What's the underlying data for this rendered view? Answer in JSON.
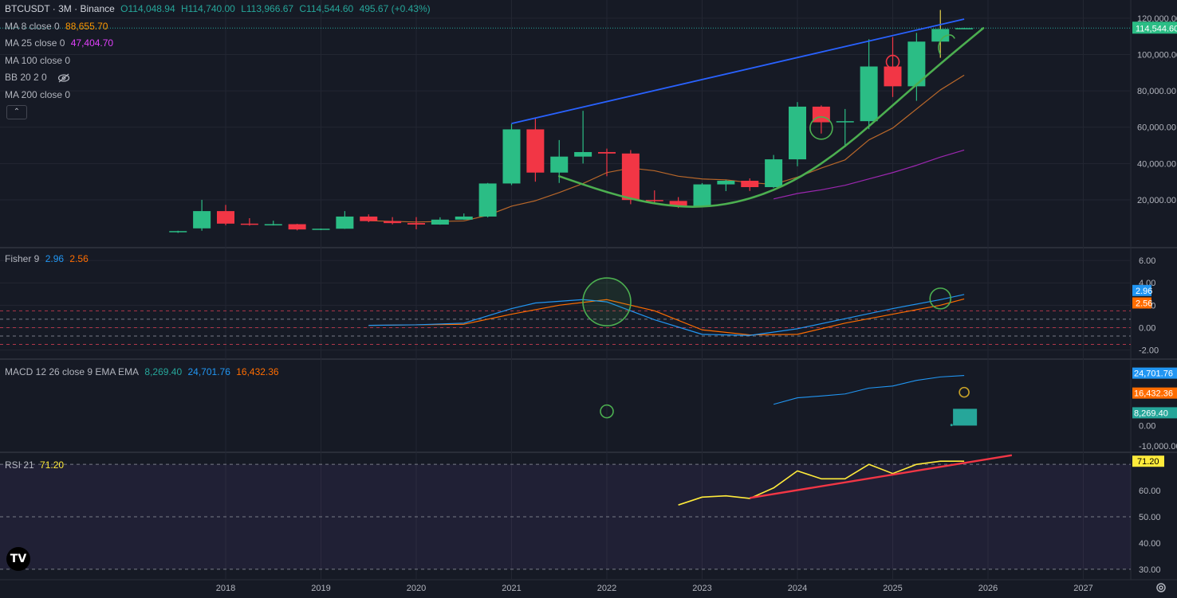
{
  "header": {
    "symbol": "BTCUSDT · 3M · Binance",
    "open": "O114,048.94",
    "high": "H114,740.00",
    "low": "L113,966.67",
    "close": "C114,544.60",
    "change": "495.67 (+0.43%)"
  },
  "indicators": {
    "ma8": {
      "label": "MA 8 close 0",
      "value": "88,655.70"
    },
    "ma25": {
      "label": "MA 25 close 0",
      "value": "47,404.70"
    },
    "ma100": {
      "label": "MA 100 close 0"
    },
    "bb": {
      "label": "BB 20 2 0"
    },
    "ma200": {
      "label": "MA 200 close 0"
    },
    "fisher": {
      "label": "Fisher 9",
      "v1": "2.96",
      "v2": "2.56"
    },
    "macd": {
      "label": "MACD 12 26 close 9 EMA EMA",
      "hist": "8,269.40",
      "macd": "24,701.76",
      "signal": "16,432.36"
    },
    "rsi": {
      "label": "RSI 21",
      "value": "71.20"
    }
  },
  "colors": {
    "up": "#26a69a",
    "up_bright": "#2bbd85",
    "down": "#f23645",
    "ma8": "#ff9800",
    "ma25": "#e040fb",
    "trend_blue": "#2962ff",
    "cup_green": "#4caf50",
    "fisher1": "#2196f3",
    "fisher2": "#ff6d00",
    "rsi_line": "#ffeb3b",
    "rsi_trend": "#f23645",
    "bg": "#161a25"
  },
  "icons": [
    "tradingview-logo-icon",
    "eye-off-icon",
    "chevron-up-icon",
    "settings-gear-icon"
  ],
  "chart_data": [
    {
      "type": "candlestick",
      "title": "BTCUSDT · 3M · Binance",
      "x_ticks": [
        "2018",
        "2019",
        "2020",
        "2021",
        "2022",
        "2023",
        "2024",
        "2025",
        "2026",
        "2027"
      ],
      "y_ticks": [
        "120,000.00",
        "100,000.00",
        "80,000.00",
        "60,000.00",
        "40,000.00",
        "20,000.00"
      ],
      "last_price_label": "114,544.60",
      "ylim": [
        -5000,
        130000
      ],
      "candles": [
        {
          "t": 2017.5,
          "o": 2500,
          "h": 3000,
          "l": 1800,
          "c": 2800
        },
        {
          "t": 2017.75,
          "o": 4300,
          "h": 20000,
          "l": 3000,
          "c": 13800
        },
        {
          "t": 2018.0,
          "o": 13800,
          "h": 17200,
          "l": 6000,
          "c": 6900
        },
        {
          "t": 2018.25,
          "o": 6900,
          "h": 9900,
          "l": 5800,
          "c": 6400
        },
        {
          "t": 2018.5,
          "o": 6400,
          "h": 8500,
          "l": 5900,
          "c": 6600
        },
        {
          "t": 2018.75,
          "o": 6600,
          "h": 6800,
          "l": 3200,
          "c": 3700
        },
        {
          "t": 2019.0,
          "o": 3700,
          "h": 4200,
          "l": 3350,
          "c": 4100
        },
        {
          "t": 2019.25,
          "o": 4100,
          "h": 13800,
          "l": 4000,
          "c": 10800
        },
        {
          "t": 2019.5,
          "o": 10800,
          "h": 12000,
          "l": 7700,
          "c": 8300
        },
        {
          "t": 2019.75,
          "o": 8300,
          "h": 10500,
          "l": 6500,
          "c": 7200
        },
        {
          "t": 2020.0,
          "o": 7200,
          "h": 10500,
          "l": 3800,
          "c": 6400
        },
        {
          "t": 2020.25,
          "o": 6400,
          "h": 10400,
          "l": 6300,
          "c": 9100
        },
        {
          "t": 2020.5,
          "o": 9100,
          "h": 12500,
          "l": 9000,
          "c": 10800
        },
        {
          "t": 2020.75,
          "o": 10800,
          "h": 29300,
          "l": 10300,
          "c": 29000
        },
        {
          "t": 2021.0,
          "o": 29000,
          "h": 61800,
          "l": 28100,
          "c": 58800
        },
        {
          "t": 2021.25,
          "o": 58800,
          "h": 64900,
          "l": 30000,
          "c": 35000
        },
        {
          "t": 2021.5,
          "o": 35000,
          "h": 52900,
          "l": 29300,
          "c": 43800
        },
        {
          "t": 2021.75,
          "o": 43800,
          "h": 69000,
          "l": 40000,
          "c": 46300
        },
        {
          "t": 2022.0,
          "o": 46300,
          "h": 48200,
          "l": 33000,
          "c": 45500
        },
        {
          "t": 2022.25,
          "o": 45500,
          "h": 47400,
          "l": 17600,
          "c": 19900
        },
        {
          "t": 2022.5,
          "o": 19900,
          "h": 25200,
          "l": 18100,
          "c": 19400
        },
        {
          "t": 2022.75,
          "o": 19400,
          "h": 21500,
          "l": 15500,
          "c": 16500
        },
        {
          "t": 2023.0,
          "o": 16500,
          "h": 29200,
          "l": 16500,
          "c": 28500
        },
        {
          "t": 2023.25,
          "o": 28500,
          "h": 31000,
          "l": 24800,
          "c": 30500
        },
        {
          "t": 2023.5,
          "o": 30500,
          "h": 31800,
          "l": 24900,
          "c": 27000
        },
        {
          "t": 2023.75,
          "o": 27000,
          "h": 44700,
          "l": 26500,
          "c": 42300
        },
        {
          "t": 2024.0,
          "o": 42300,
          "h": 73800,
          "l": 38500,
          "c": 71300
        },
        {
          "t": 2024.25,
          "o": 71300,
          "h": 72000,
          "l": 56500,
          "c": 62700
        },
        {
          "t": 2024.5,
          "o": 62700,
          "h": 70000,
          "l": 49000,
          "c": 63300
        },
        {
          "t": 2024.75,
          "o": 63300,
          "h": 108400,
          "l": 58900,
          "c": 93400
        },
        {
          "t": 2025.0,
          "o": 93400,
          "h": 109600,
          "l": 76600,
          "c": 82500
        },
        {
          "t": 2025.25,
          "o": 82500,
          "h": 111900,
          "l": 74500,
          "c": 107100
        },
        {
          "t": 2025.5,
          "o": 107100,
          "h": 124500,
          "l": 98200,
          "c": 114048
        },
        {
          "t": 2025.75,
          "o": 114048,
          "h": 114740,
          "l": 113966,
          "c": 114544
        }
      ],
      "ma8": [
        [
          2019.5,
          8500
        ],
        [
          2020.0,
          7800
        ],
        [
          2020.5,
          8400
        ],
        [
          2020.75,
          11500
        ],
        [
          2021.0,
          16500
        ],
        [
          2021.25,
          19500
        ],
        [
          2021.5,
          24000
        ],
        [
          2021.75,
          29000
        ],
        [
          2022.0,
          35000
        ],
        [
          2022.25,
          37500
        ],
        [
          2022.5,
          36000
        ],
        [
          2022.75,
          33000
        ],
        [
          2023.0,
          31500
        ],
        [
          2023.25,
          31000
        ],
        [
          2023.5,
          29500
        ],
        [
          2023.75,
          28500
        ],
        [
          2024.0,
          32500
        ],
        [
          2024.25,
          37500
        ],
        [
          2024.5,
          42000
        ],
        [
          2024.75,
          53000
        ],
        [
          2025.0,
          59500
        ],
        [
          2025.25,
          70000
        ],
        [
          2025.5,
          80500
        ],
        [
          2025.75,
          88655
        ]
      ],
      "ma25": [
        [
          2023.75,
          20500
        ],
        [
          2024.0,
          23500
        ],
        [
          2024.25,
          25500
        ],
        [
          2024.5,
          28000
        ],
        [
          2024.75,
          31500
        ],
        [
          2025.0,
          35000
        ],
        [
          2025.25,
          39000
        ],
        [
          2025.5,
          43500
        ],
        [
          2025.75,
          47404
        ]
      ],
      "trendline": [
        [
          2021.0,
          62000
        ],
        [
          2025.75,
          119500
        ]
      ],
      "cup_curve": [
        [
          2021.5,
          33000
        ],
        [
          2022.0,
          24000
        ],
        [
          2022.5,
          17500
        ],
        [
          2023.0,
          15500
        ],
        [
          2023.5,
          20000
        ],
        [
          2024.0,
          31000
        ],
        [
          2024.5,
          49000
        ],
        [
          2025.0,
          72000
        ],
        [
          2025.5,
          95000
        ],
        [
          2025.95,
          114500
        ]
      ]
    },
    {
      "type": "line",
      "title": "Fisher 9",
      "y_ticks": [
        "6.00",
        "4.00",
        "2.00",
        "0.00",
        "-2.00"
      ],
      "ylim": [
        -2.6,
        7.0
      ],
      "series": [
        {
          "name": "Fisher",
          "values": [
            [
              2019.5,
              0.2
            ],
            [
              2020.0,
              0.25
            ],
            [
              2020.5,
              0.4
            ],
            [
              2021.0,
              1.7
            ],
            [
              2021.25,
              2.2
            ],
            [
              2021.75,
              2.5
            ],
            [
              2022.0,
              2.3
            ],
            [
              2022.5,
              0.7
            ],
            [
              2023.0,
              -0.6
            ],
            [
              2023.5,
              -0.7
            ],
            [
              2024.0,
              -0.1
            ],
            [
              2024.5,
              0.8
            ],
            [
              2025.0,
              1.7
            ],
            [
              2025.5,
              2.5
            ],
            [
              2025.75,
              2.96
            ]
          ]
        },
        {
          "name": "Trigger",
          "values": [
            [
              2019.5,
              0.2
            ],
            [
              2020.0,
              0.25
            ],
            [
              2020.5,
              0.3
            ],
            [
              2021.0,
              1.2
            ],
            [
              2021.5,
              2.0
            ],
            [
              2022.0,
              2.5
            ],
            [
              2022.5,
              1.5
            ],
            [
              2023.0,
              -0.2
            ],
            [
              2023.5,
              -0.65
            ],
            [
              2024.0,
              -0.6
            ],
            [
              2024.5,
              0.4
            ],
            [
              2025.0,
              1.2
            ],
            [
              2025.5,
              2.0
            ],
            [
              2025.75,
              2.56
            ]
          ]
        }
      ],
      "levels": [
        1.5,
        0.75,
        0.0,
        -0.75,
        -1.5
      ],
      "value_labels": [
        "2.96",
        "2.56"
      ]
    },
    {
      "type": "line",
      "title": "MACD 12 26 close 9 EMA EMA",
      "y_ticks": [
        "0.00",
        "-10,000.00"
      ],
      "ylim": [
        -12000,
        32000
      ],
      "series": [
        {
          "name": "MACD",
          "values": [
            [
              2023.75,
              10500
            ],
            [
              2024.0,
              13700
            ],
            [
              2024.25,
              14600
            ],
            [
              2024.5,
              15600
            ],
            [
              2024.75,
              18500
            ],
            [
              2025.0,
              19500
            ],
            [
              2025.25,
              22300
            ],
            [
              2025.5,
              24000
            ],
            [
              2025.75,
              24701
            ]
          ]
        }
      ],
      "histogram": [
        [
          2025.5,
          300
        ],
        [
          2025.75,
          8269
        ]
      ],
      "value_labels": [
        "24,701.76",
        "16,432.36",
        "8,269.40"
      ]
    },
    {
      "type": "line",
      "title": "RSI 21",
      "y_ticks": [
        "60.00",
        "50.00",
        "40.00",
        "30.00"
      ],
      "ylim": [
        26,
        74
      ],
      "levels": [
        70,
        50,
        30
      ],
      "series": [
        {
          "name": "RSI",
          "values": [
            [
              2022.75,
              54.5
            ],
            [
              2023.0,
              57.5
            ],
            [
              2023.25,
              58
            ],
            [
              2023.5,
              57
            ],
            [
              2023.75,
              61
            ],
            [
              2024.0,
              67.5
            ],
            [
              2024.25,
              64.5
            ],
            [
              2024.5,
              64.5
            ],
            [
              2024.75,
              70
            ],
            [
              2025.0,
              66.5
            ],
            [
              2025.25,
              70
            ],
            [
              2025.5,
              71.2
            ],
            [
              2025.75,
              71.2
            ]
          ]
        }
      ],
      "trendline": [
        [
          2023.5,
          57.2
        ],
        [
          2026.25,
          73.5
        ]
      ],
      "value_labels": [
        "71.20"
      ]
    }
  ]
}
